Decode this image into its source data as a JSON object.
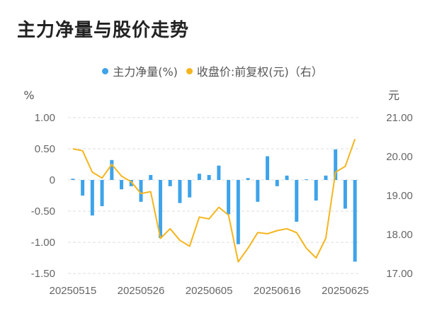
{
  "title": "主力净量与股价走势",
  "chart_data": {
    "type": "bar+line",
    "series": [
      {
        "name": "主力净量(%)",
        "type": "bar",
        "axis": "left",
        "color": "#3ea3ea",
        "values": [
          0.02,
          -0.25,
          -0.57,
          -0.42,
          0.32,
          -0.15,
          -0.1,
          -0.35,
          0.08,
          -0.93,
          -0.1,
          -0.37,
          -0.28,
          0.1,
          0.08,
          0.23,
          -0.55,
          -1.03,
          0.03,
          -0.35,
          0.38,
          -0.1,
          0.07,
          -0.67,
          0.01,
          -0.33,
          0.07,
          0.49,
          -0.46,
          -1.31
        ]
      },
      {
        "name": "收盘价:前复权(元)（右）",
        "type": "line",
        "axis": "right",
        "color": "#f5b51e",
        "values": [
          20.2,
          20.15,
          19.6,
          19.45,
          19.8,
          19.5,
          19.35,
          19.05,
          19.1,
          17.9,
          18.15,
          17.85,
          17.7,
          18.45,
          18.4,
          18.7,
          18.5,
          17.3,
          17.65,
          18.05,
          18.02,
          18.1,
          18.15,
          18.05,
          17.65,
          17.4,
          17.9,
          19.6,
          19.75,
          20.45
        ]
      }
    ],
    "x_labels": [
      "20250515",
      "20250526",
      "20250605",
      "20250616",
      "20250625"
    ],
    "y_left": {
      "unit": "%",
      "ticks": [
        "1.00",
        "0.50",
        "0",
        "-0.50",
        "-1.00",
        "-1.50"
      ],
      "range": [
        -1.5,
        1.0
      ]
    },
    "y_right": {
      "unit": "元",
      "ticks": [
        "21.00",
        "20.00",
        "19.00",
        "18.00",
        "17.00"
      ],
      "range": [
        17.0,
        21.0
      ]
    },
    "grid": "horizontal dashed",
    "legend_position": "top-center"
  }
}
